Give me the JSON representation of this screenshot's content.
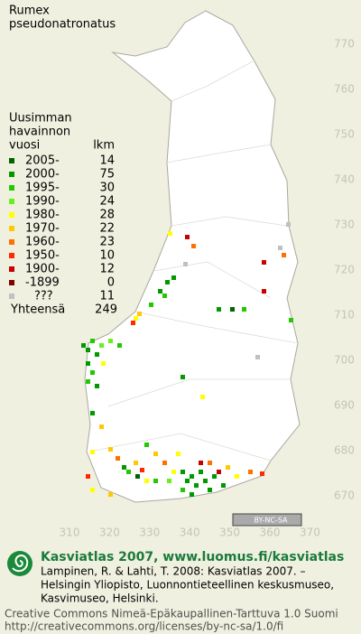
{
  "title": [
    "Rumex",
    "pseudonatronatus"
  ],
  "legend": {
    "heading": [
      "Uusimman",
      "havainnon",
      "vuosi"
    ],
    "count_heading": "lkm",
    "rows": [
      {
        "label": "2005-",
        "count": 14,
        "color": "#006400"
      },
      {
        "label": "2000-",
        "count": 75,
        "color": "#009a00"
      },
      {
        "label": "1995-",
        "count": 30,
        "color": "#22c800"
      },
      {
        "label": "1990-",
        "count": 24,
        "color": "#66f020"
      },
      {
        "label": "1980-",
        "count": 28,
        "color": "#ffff00"
      },
      {
        "label": "1970-",
        "count": 22,
        "color": "#ffc800"
      },
      {
        "label": "1960-",
        "count": 23,
        "color": "#ff7000"
      },
      {
        "label": "1950-",
        "count": 10,
        "color": "#ff2800"
      },
      {
        "label": "1900-",
        "count": 12,
        "color": "#c80000"
      },
      {
        "label": "-1899",
        "count": 0,
        "color": "#800000"
      },
      {
        "label": "???",
        "count": 11,
        "color": "#c0c0c0"
      }
    ],
    "total_label": "Yhteensä",
    "total": 249
  },
  "map": {
    "x_ticks": [
      310,
      320,
      330,
      340,
      350,
      360,
      370
    ],
    "y_ticks": [
      670,
      680,
      690,
      700,
      710,
      720,
      730,
      740,
      750,
      760,
      770
    ],
    "license_badge": "BY-NC-SA"
  },
  "footer": {
    "brand": "Kasviatlas 2007, www.luomus.fi/kasviatlas",
    "citation": [
      "Lampinen, R. & Lahti, T. 2008: Kasviatlas 2007. –",
      "Helsingin Yliopisto, Luonnontieteellinen keskusmuseo,",
      "Kasvimuseo, Helsinki."
    ],
    "license": [
      "Creative Commons Nimeä-Epäkaupallinen-Tarttuva 1.0 Suomi",
      "http://creativecommons.org/licenses/by-nc-sa/1.0/fi"
    ]
  }
}
